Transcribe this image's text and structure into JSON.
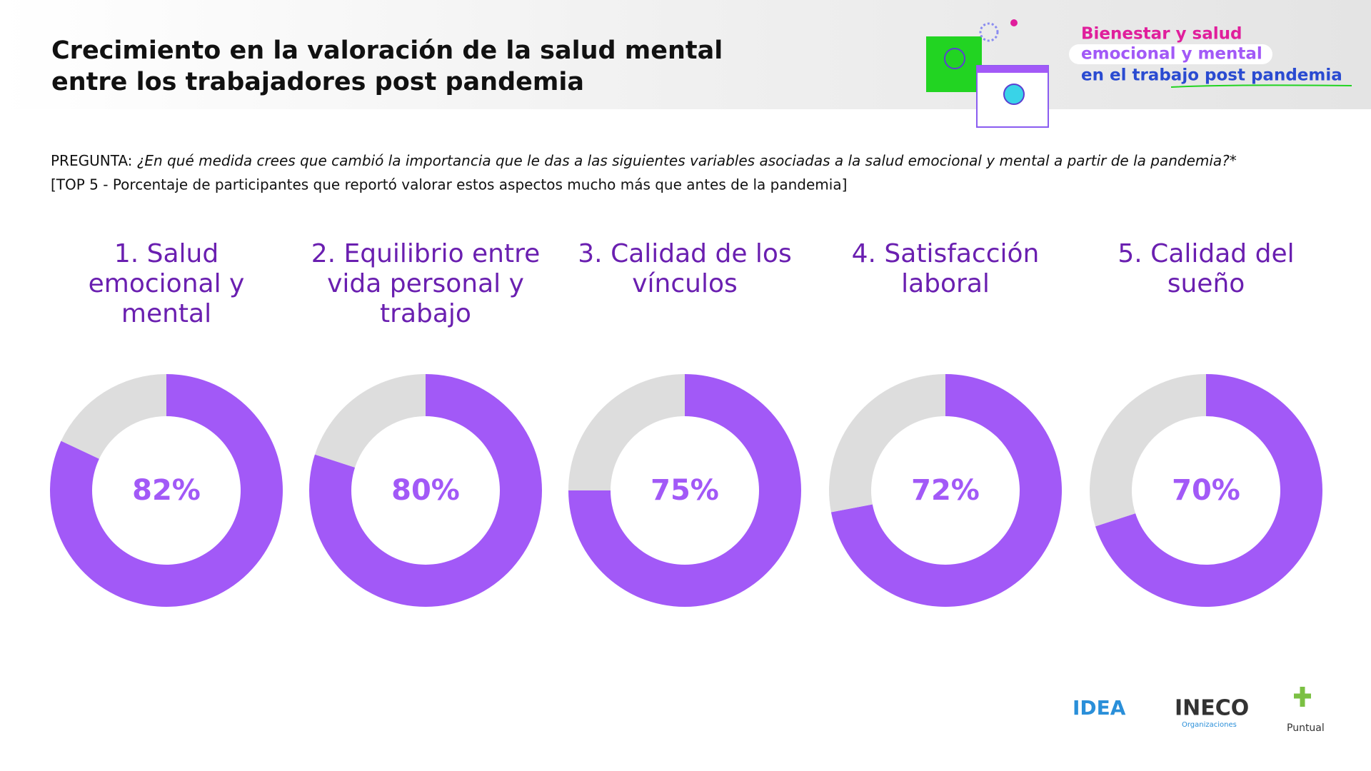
{
  "header": {
    "title_lines": [
      "Crecimiento en la valoración de la salud mental",
      "entre los trabajadores post pandemia"
    ],
    "brand_lines": [
      "Bienestar y salud",
      "emocional y mental",
      "en el trabajo post pandemia"
    ]
  },
  "question": {
    "label": "PREGUNTA:",
    "text": "¿En qué medida crees que cambió la importancia que le das a las siguientes variables asociadas a la salud emocional y mental a partir de la pandemia?*",
    "note": "[TOP 5 - Porcentaje de participantes que reportó valorar estos aspectos mucho más que antes de la pandemia]"
  },
  "footer": {
    "logos": [
      "IDEA",
      "INECO",
      "Organizaciones",
      "Puntual"
    ]
  },
  "chart_data": [
    {
      "type": "pie",
      "title_lines": [
        "1. Salud",
        "emocional y",
        "mental"
      ],
      "values": [
        82,
        18
      ],
      "value_labels": [
        "82%",
        null
      ],
      "colors": [
        "#a259f7",
        "#dddddd"
      ]
    },
    {
      "type": "pie",
      "title_lines": [
        "2. Equilibrio entre",
        "vida personal y",
        "trabajo"
      ],
      "values": [
        80,
        20
      ],
      "value_labels": [
        "80%",
        null
      ],
      "colors": [
        "#a259f7",
        "#dddddd"
      ]
    },
    {
      "type": "pie",
      "title_lines": [
        "3. Calidad de los",
        "vínculos"
      ],
      "values": [
        75,
        25
      ],
      "value_labels": [
        "75%",
        null
      ],
      "colors": [
        "#a259f7",
        "#dddddd"
      ]
    },
    {
      "type": "pie",
      "title_lines": [
        "4. Satisfacción",
        "laboral"
      ],
      "values": [
        72,
        28
      ],
      "value_labels": [
        "72%",
        null
      ],
      "colors": [
        "#a259f7",
        "#dddddd"
      ]
    },
    {
      "type": "pie",
      "title_lines": [
        "5. Calidad del",
        "sueño"
      ],
      "values": [
        70,
        30
      ],
      "value_labels": [
        "70%",
        null
      ],
      "colors": [
        "#a259f7",
        "#dddddd"
      ]
    }
  ]
}
